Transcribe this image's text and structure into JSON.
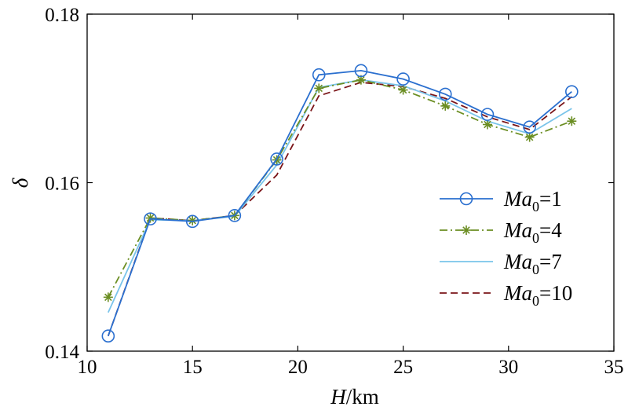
{
  "chart_data": {
    "type": "line",
    "title": "",
    "xlabel_var": "H",
    "xlabel_unit": "/km",
    "ylabel": "δ",
    "xlim": [
      10,
      35
    ],
    "ylim": [
      0.14,
      0.18
    ],
    "xticks": [
      10,
      15,
      20,
      25,
      30,
      35
    ],
    "yticks": [
      0.14,
      0.16,
      0.18
    ],
    "x": [
      11,
      13,
      15,
      17,
      19,
      21,
      23,
      25,
      27,
      29,
      31,
      33
    ],
    "legend_position": "right",
    "series": [
      {
        "name": "Ma0=1",
        "label_base": "Ma",
        "label_sub": "0",
        "label_value": "=1",
        "color": "#2a6fcf",
        "line_style": "solid",
        "marker": "circle",
        "values": [
          0.1418,
          0.1557,
          0.1554,
          0.1561,
          0.1628,
          0.1728,
          0.1733,
          0.1723,
          0.1705,
          0.1681,
          0.1666,
          0.1708
        ]
      },
      {
        "name": "Ma0=4",
        "label_base": "Ma",
        "label_sub": "0",
        "label_value": "=4",
        "color": "#6b8e23",
        "line_style": "dashdot",
        "marker": "asterisk",
        "values": [
          0.1464,
          0.1558,
          0.1555,
          0.1561,
          0.1627,
          0.1712,
          0.1722,
          0.171,
          0.1691,
          0.1669,
          0.1654,
          0.1673
        ]
      },
      {
        "name": "Ma0=7",
        "label_base": "Ma",
        "label_sub": "0",
        "label_value": "=7",
        "color": "#7ac4ea",
        "line_style": "solid",
        "marker": "none",
        "values": [
          0.1446,
          0.1556,
          0.1555,
          0.156,
          0.1621,
          0.1713,
          0.1722,
          0.1715,
          0.1697,
          0.1673,
          0.1658,
          0.1688
        ]
      },
      {
        "name": "Ma0=10",
        "label_base": "Ma",
        "label_sub": "0",
        "label_value": "=10",
        "color": "#7a1418",
        "line_style": "dashed",
        "marker": "none",
        "values": [
          0.1418,
          0.1558,
          0.1555,
          0.1561,
          0.1609,
          0.1703,
          0.1719,
          0.1714,
          0.17,
          0.1678,
          0.1663,
          0.1702
        ]
      }
    ]
  }
}
